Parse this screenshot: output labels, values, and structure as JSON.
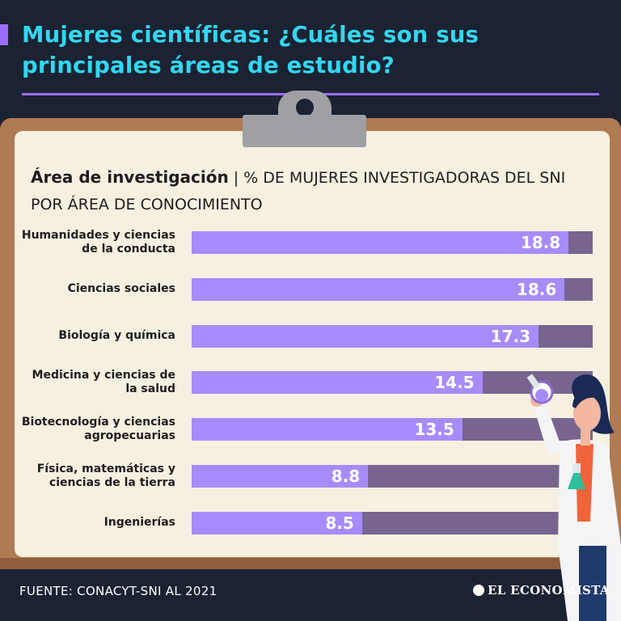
{
  "header": {
    "title": "Mujeres científicas: ¿Cuáles son sus principales áreas de estudio?"
  },
  "subtitle": {
    "bold": "Área de investigación",
    "separator": "|",
    "rest": "% DE MUJERES INVESTIGADORAS DEL SNI POR ÁREA DE CONOCIMIENTO"
  },
  "chart_data": {
    "type": "bar",
    "orientation": "horizontal",
    "categories": [
      "Humanidades y ciencias de la conducta",
      "Ciencias sociales",
      "Biología y química",
      "Medicina y ciencias de la salud",
      "Biotecnología y ciencias agropecuarias",
      "Física, matemáticas y ciencias de la tierra",
      "Ingenierías"
    ],
    "values": [
      18.8,
      18.6,
      17.3,
      14.5,
      13.5,
      8.8,
      8.5
    ],
    "value_labels": [
      "18.8",
      "18.6",
      "17.3",
      "14.5",
      "13.5",
      "8.8",
      "8.5"
    ],
    "xlim": [
      0,
      20
    ],
    "grid": false,
    "colors": {
      "fill": "#a78bfa",
      "track": "#77658f"
    }
  },
  "footer": {
    "source": "FUENTE: CONACYT-SNI AL 2021",
    "brand": "EL ECONOMISTA"
  },
  "colors": {
    "background": "#1b2232",
    "title": "#33d6f0",
    "accent": "#9b6bff",
    "board": "#b07a52",
    "paper": "#f6f0e0"
  }
}
